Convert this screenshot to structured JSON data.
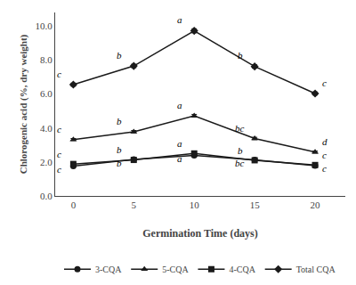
{
  "chart_data": {
    "type": "line",
    "x": [
      0,
      5,
      10,
      15,
      20
    ],
    "xlabel": "Germination Time (days)",
    "ylabel": "Chlorogenic acid (%, dry weight)",
    "xlim": [
      -1.5,
      22.5
    ],
    "ylim": [
      0.0,
      10.8
    ],
    "xticks": [
      0,
      5,
      10,
      15,
      20
    ],
    "yticks": [
      {
        "value": 0.0,
        "label": "0.0"
      },
      {
        "value": 2.0,
        "label": "2.0"
      },
      {
        "value": 4.0,
        "label": "4.0"
      },
      {
        "value": 6.0,
        "label": "6.0"
      },
      {
        "value": 8.0,
        "label": "8.0"
      },
      {
        "value": 10.0,
        "label": "10.0"
      }
    ],
    "grid": false,
    "legend": "bottom",
    "series": [
      {
        "name": "3-CQA",
        "color": "#1a1a1a",
        "marker": "circle",
        "values": [
          1.75,
          2.15,
          2.38,
          2.12,
          1.78
        ],
        "errors": [
          0.05,
          0.06,
          0.07,
          0.06,
          0.05
        ],
        "annotations": [
          "c",
          "b",
          "a",
          "bc",
          "c"
        ]
      },
      {
        "name": "5-CQA",
        "color": "#1a1a1a",
        "marker": "triangle-up",
        "values": [
          3.32,
          3.78,
          4.72,
          3.38,
          2.58
        ],
        "errors": [
          0.06,
          0.07,
          0.08,
          0.07,
          0.06
        ],
        "annotations": [
          "c",
          "b",
          "a",
          "bc",
          "d"
        ]
      },
      {
        "name": "4-CQA",
        "color": "#1a1a1a",
        "marker": "square",
        "values": [
          1.88,
          2.12,
          2.5,
          2.1,
          1.82
        ],
        "errors": [
          0.05,
          0.06,
          0.07,
          0.06,
          0.05
        ],
        "annotations": [
          "c",
          "b",
          "a",
          "b",
          "c"
        ]
      },
      {
        "name": "Total CQA",
        "color": "#1a1a1a",
        "marker": "diamond",
        "values": [
          6.55,
          7.65,
          9.72,
          7.62,
          6.03
        ],
        "errors": [
          0.09,
          0.1,
          0.12,
          0.1,
          0.09
        ],
        "annotations": [
          "c",
          "b",
          "a",
          "b",
          "c"
        ]
      }
    ]
  }
}
